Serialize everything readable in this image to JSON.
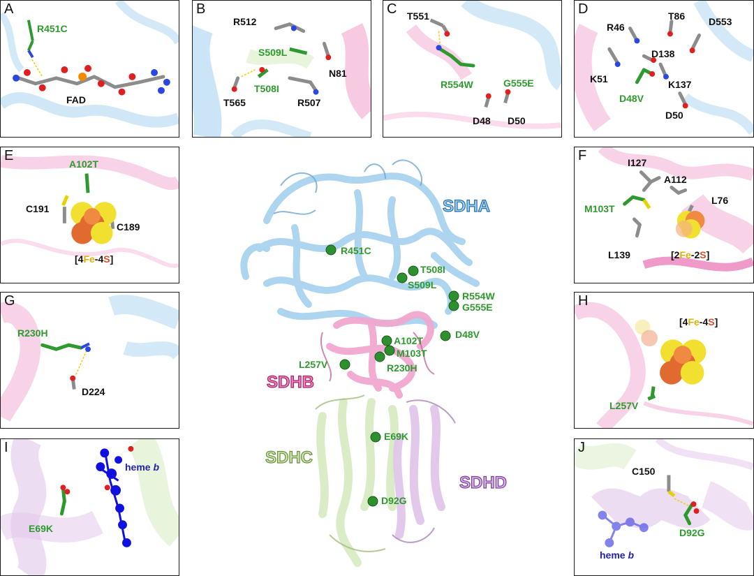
{
  "panels": {
    "A": {
      "letter": "A",
      "labels": [
        "R451C",
        "FAD"
      ]
    },
    "B": {
      "letter": "B",
      "labels": [
        "R512",
        "S509L",
        "N81",
        "T508I",
        "T565",
        "R507"
      ]
    },
    "C": {
      "letter": "C",
      "labels": [
        "T551",
        "R554W",
        "G555E",
        "D48",
        "D50"
      ]
    },
    "D": {
      "letter": "D",
      "labels": [
        "R46",
        "T86",
        "D553",
        "D138",
        "K51",
        "K137",
        "D48V",
        "D50"
      ]
    },
    "E": {
      "letter": "E",
      "labels": [
        "A102T",
        "C191",
        "C189"
      ],
      "cluster": {
        "pre": "[4",
        "fe": "Fe",
        "mid": "-4",
        "s": "S",
        "post": "]"
      }
    },
    "F": {
      "letter": "F",
      "labels": [
        "I127",
        "A112",
        "M103T",
        "L76",
        "L139"
      ],
      "cluster": {
        "pre": "[2",
        "fe": "Fe",
        "mid": "-2",
        "s": "S",
        "post": "]"
      }
    },
    "G": {
      "letter": "G",
      "labels": [
        "R230H",
        "D224"
      ]
    },
    "H": {
      "letter": "H",
      "labels": [
        "L257V"
      ],
      "cluster": {
        "pre": "[4",
        "fe": "Fe",
        "mid": "-4",
        "s": "S",
        "post": "]"
      }
    },
    "I": {
      "letter": "I",
      "labels": [
        "E69K"
      ],
      "heme": {
        "name": "heme",
        "italic": "b"
      }
    },
    "J": {
      "letter": "J",
      "labels": [
        "C150",
        "D92G"
      ],
      "heme": {
        "name": "heme",
        "italic": "b"
      }
    }
  },
  "center": {
    "chains": [
      "SDHA",
      "SDHB",
      "SDHC",
      "SDHD"
    ],
    "mutations": [
      "R451C",
      "T508I",
      "S509L",
      "R554W",
      "G555E",
      "D48V",
      "A102T",
      "M103T",
      "R230H",
      "L257V",
      "E69K",
      "D92G"
    ]
  },
  "colors": {
    "sdha": "#a9d3f0",
    "sdhb": "#f2a7cf",
    "sdhc": "#d9ecc4",
    "sdhd": "#e1c6ea",
    "mutant": "#2e9a2e",
    "carbon": "#8c8c8c",
    "oxygen": "#e02020",
    "nitrogen": "#2a48e0",
    "sulfur": "#f2e030",
    "iron": "#e06a30",
    "heme": "#1010e0"
  }
}
